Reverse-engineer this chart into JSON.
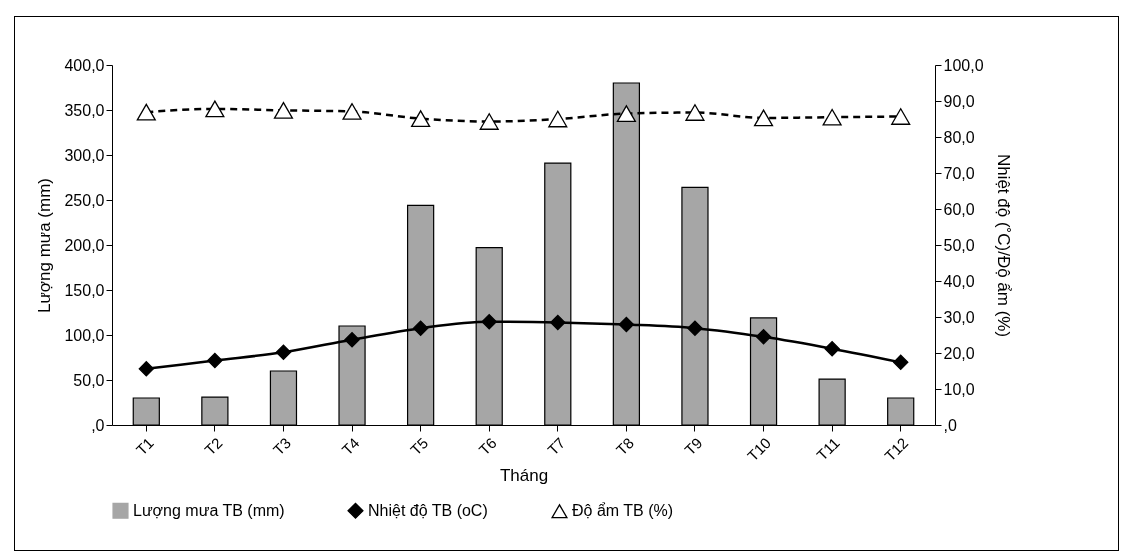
{
  "chart_data": {
    "type": "bar",
    "xlabel": "Tháng",
    "ylabel": "Lượng mưa (mm)",
    "y2label": "Nhiệt độ (˚C)/Độ ẩm (%)",
    "categories": [
      "T1",
      "T2",
      "T3",
      "T4",
      "T5",
      "T6",
      "T7",
      "T8",
      "T9",
      "T10",
      "T11",
      "T12"
    ],
    "series": [
      {
        "name": "Lượng mưa TB (mm)",
        "color": "#a6a6a6",
        "values": [
          30,
          31,
          60,
          110,
          244,
          197,
          291,
          380,
          264,
          119,
          51,
          30
        ]
      },
      {
        "name": "Nhiệt độ TB (oC)",
        "type": "line",
        "axis": "y2",
        "color": "#000000",
        "marker": "diamond",
        "line_style": "solid",
        "values": [
          15.6,
          17.9,
          20.2,
          23.7,
          26.9,
          28.7,
          28.5,
          27.9,
          26.9,
          24.5,
          21.2,
          17.4
        ]
      },
      {
        "name": "Độ ẩm TB (%)",
        "type": "line",
        "axis": "y2",
        "color": "#000000",
        "marker": "triangle",
        "line_style": "dashed",
        "values": [
          86.9,
          87.8,
          87.4,
          87.1,
          85.1,
          84.3,
          85.0,
          86.5,
          86.8,
          85.3,
          85.5,
          85.7
        ]
      }
    ],
    "ylim": [
      0,
      400
    ],
    "yticks": [
      {
        "value": 0,
        "label": ",0"
      },
      {
        "value": 50,
        "label": "50,0"
      },
      {
        "value": 100,
        "label": "100,0"
      },
      {
        "value": 150,
        "label": "150,0"
      },
      {
        "value": 200,
        "label": "200,0"
      },
      {
        "value": 250,
        "label": "250,0"
      },
      {
        "value": 300,
        "label": "300,0"
      },
      {
        "value": 350,
        "label": "350,0"
      },
      {
        "value": 400,
        "label": "400,0"
      }
    ],
    "y2lim": [
      0,
      100
    ],
    "y2ticks": [
      {
        "value": 0,
        "label": ",0"
      },
      {
        "value": 10,
        "label": "10,0"
      },
      {
        "value": 20,
        "label": "20,0"
      },
      {
        "value": 30,
        "label": "30,0"
      },
      {
        "value": 40,
        "label": "40,0"
      },
      {
        "value": 50,
        "label": "50,0"
      },
      {
        "value": 60,
        "label": "60,0"
      },
      {
        "value": 70,
        "label": "70,0"
      },
      {
        "value": 80,
        "label": "80,0"
      },
      {
        "value": 90,
        "label": "90,0"
      },
      {
        "value": 100,
        "label": "100,0"
      }
    ],
    "grid": false,
    "legend": "bottom"
  }
}
